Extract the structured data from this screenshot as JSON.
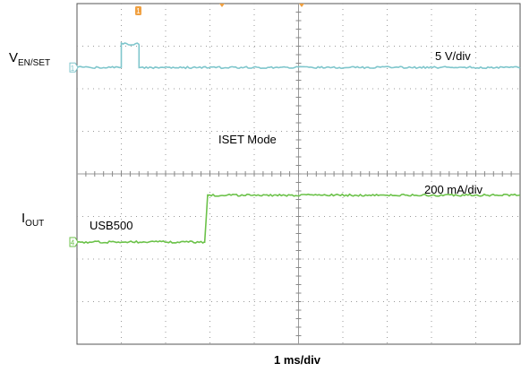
{
  "chart_data": {
    "type": "line",
    "x_unit": "ms",
    "xlim": [
      0,
      10
    ],
    "grid": true,
    "timebase_label": "1 ms/div",
    "channels": [
      {
        "name": "VEN/SET",
        "label_main": "V",
        "label_sub": "EN/SET",
        "scale_label": "5 V/div",
        "color": "#7fc6cc",
        "marker": "1",
        "x": [
          0,
          1.0,
          1.0,
          1.4,
          1.4,
          10
        ],
        "y_div": [
          0,
          0,
          0.55,
          0.55,
          0,
          0
        ]
      },
      {
        "name": "IOUT",
        "label_main": "I",
        "label_sub": "OUT",
        "scale_label": "200 mA/div",
        "color": "#6cc24a",
        "marker": "4",
        "x": [
          0,
          2.88,
          2.95,
          10
        ],
        "y_div": [
          0,
          0,
          1.1,
          1.1
        ],
        "annotations": [
          "USB500",
          "ISET Mode"
        ]
      }
    ],
    "trigger_marker_color": "#f0a040"
  }
}
